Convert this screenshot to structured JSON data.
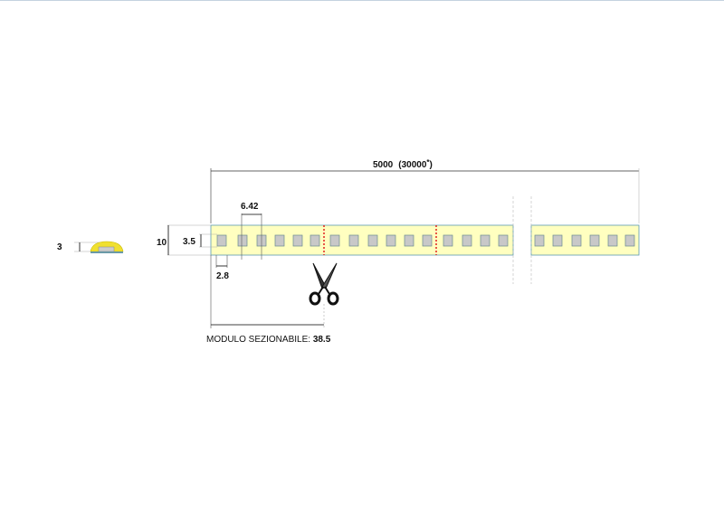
{
  "dimensions": {
    "total_length": "5000",
    "total_length_alt": "(30000",
    "total_length_note": "*",
    "total_length_close": ")",
    "width": "10",
    "led_size": "3.5",
    "led_pitch": "6.42",
    "led_gap": "2.8",
    "profile_height": "3",
    "module_label": "MODULO SEZIONABILE: ",
    "module_value": "38.5"
  },
  "colors": {
    "strip_fill": "#ffffc0",
    "strip_border": "#5a9ab0",
    "led_fill": "#c8c8c8",
    "led_border": "#6a8a90",
    "cut_line": "#e02020",
    "profile_fill": "#f0e030"
  },
  "icons": {
    "cut": "scissors-icon"
  }
}
